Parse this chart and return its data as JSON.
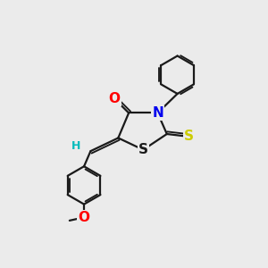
{
  "bg_color": "#ebebeb",
  "bond_color": "#1a1a1a",
  "bond_width": 1.6,
  "atom_colors": {
    "O": "#ff0000",
    "N": "#0000ee",
    "S_thio": "#cccc00",
    "S_ring": "#1a1a1a",
    "H": "#00bbbb",
    "C": "#1a1a1a"
  },
  "font_size_atoms": 11,
  "font_size_H": 9,
  "font_size_methyl": 10
}
